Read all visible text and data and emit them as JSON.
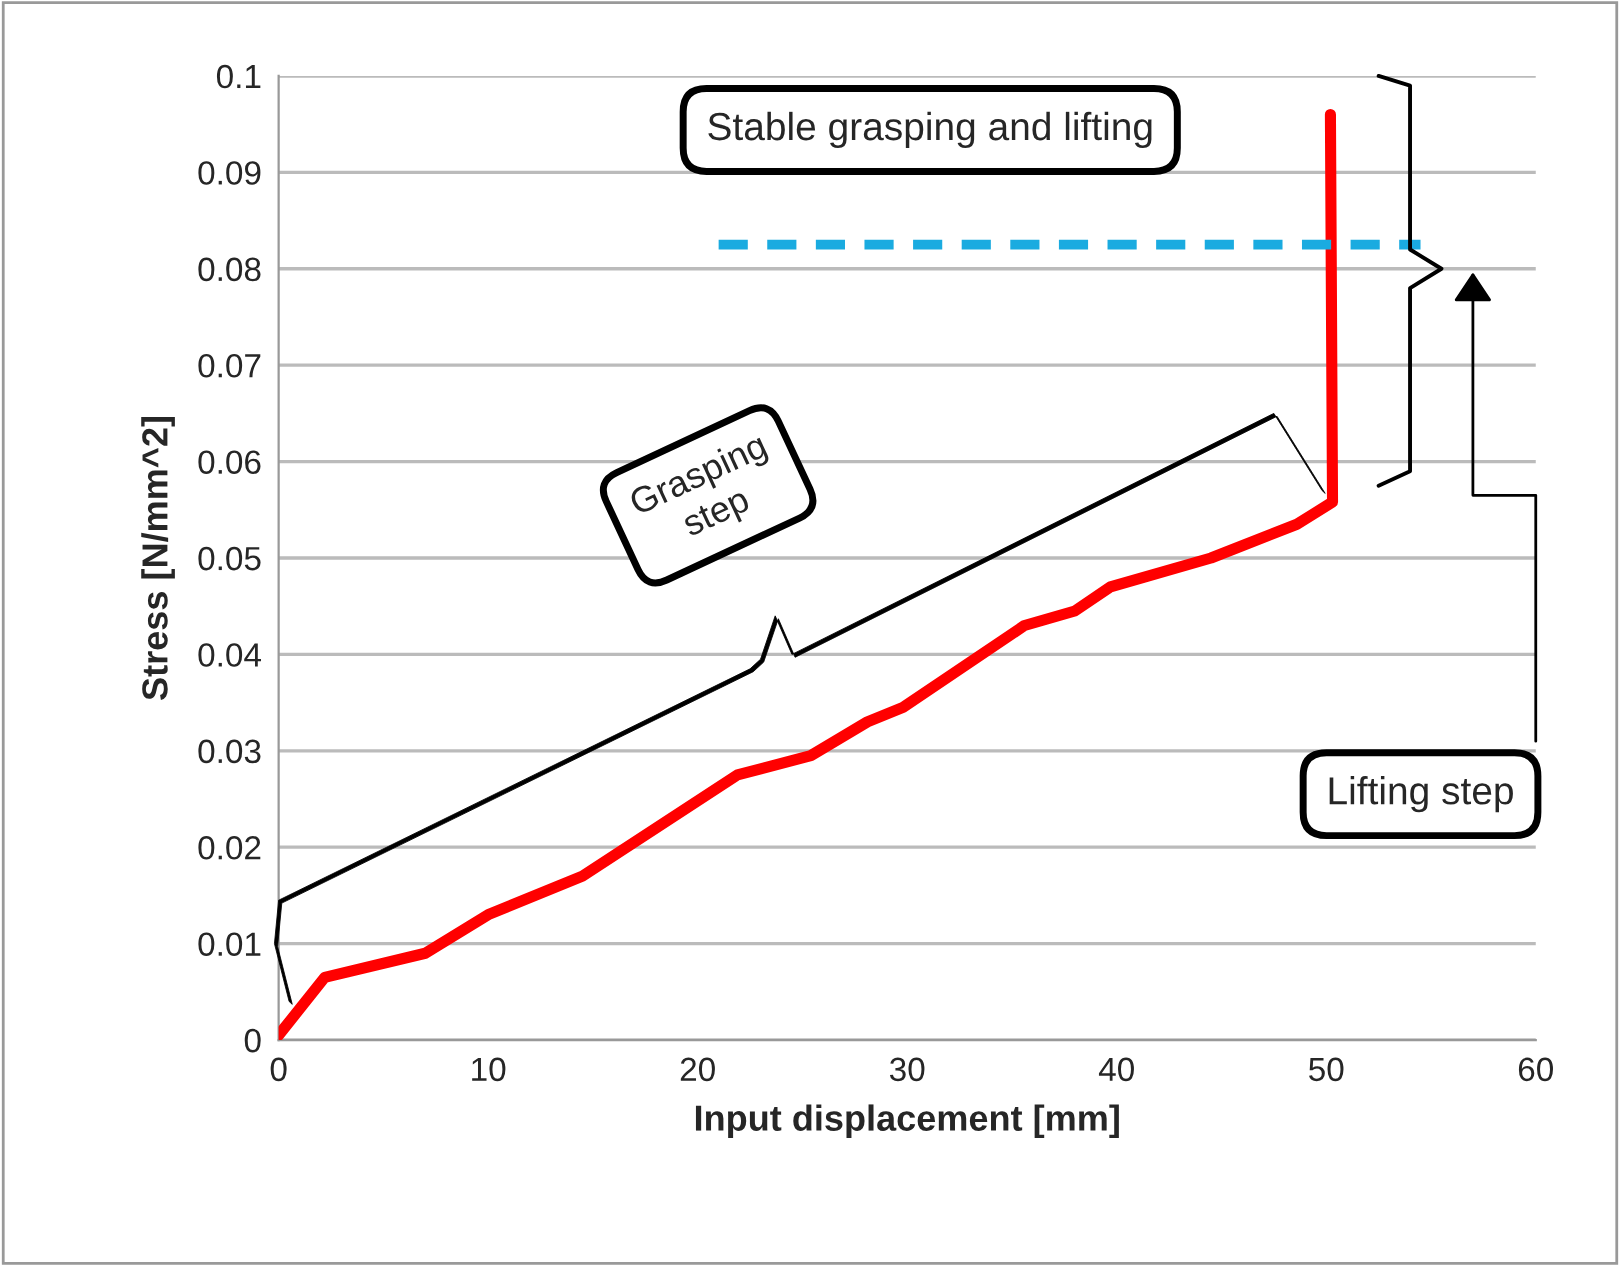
{
  "chart_data": {
    "type": "line",
    "xlabel": "Input displacement [mm]",
    "ylabel": "Stress [N/mm^2]",
    "xlim": [
      0,
      60
    ],
    "xticks": [
      0,
      10,
      20,
      30,
      40,
      50,
      60
    ],
    "ylim": [
      0,
      0.1
    ],
    "yticks": [
      0,
      0.01,
      0.02,
      0.03,
      0.04,
      0.05,
      0.06,
      0.07,
      0.08,
      0.09,
      0.1
    ],
    "grid": "y",
    "marker": "none",
    "series": [
      {
        "color": "#ff0000",
        "line_style": "solid",
        "x": [
          0,
          2.2,
          7.0,
          10.0,
          14.5,
          21.9,
          25.4,
          28.1,
          29.8,
          35.6,
          38.0,
          39.7,
          44.5,
          48.6,
          50.3,
          50.2
        ],
        "values": [
          0.0005,
          0.0065,
          0.009,
          0.013,
          0.017,
          0.0275,
          0.0295,
          0.033,
          0.0345,
          0.043,
          0.0445,
          0.047,
          0.05,
          0.0535,
          0.0558,
          0.096
        ]
      },
      {
        "color": "#1aabe0",
        "line_style": "dashed",
        "x": [
          21,
          54.5
        ],
        "values": [
          0.0825,
          0.0825
        ]
      }
    ],
    "annotations": [
      "Stable grasping and lifting",
      "Grasping step",
      "Lifting step"
    ]
  }
}
